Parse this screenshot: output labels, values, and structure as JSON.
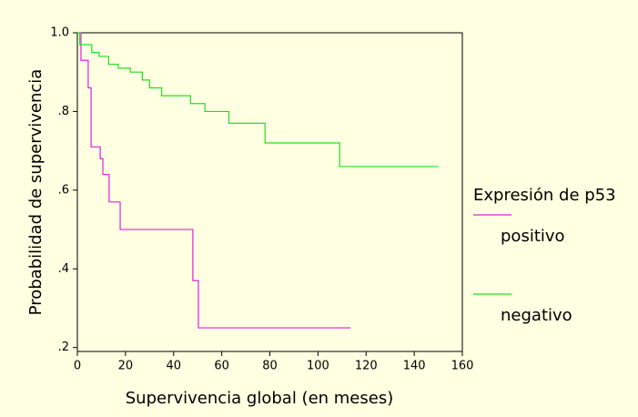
{
  "chart_data": {
    "type": "line",
    "xlabel": "Supervivencia global (en meses)",
    "ylabel": "Probabilidad de supervivencia",
    "legend_title": "Expresión de p53",
    "legend": "right",
    "xlim": [
      0,
      160
    ],
    "xticks": [
      0,
      20,
      40,
      60,
      80,
      100,
      120,
      140,
      160
    ],
    "ylim": [
      0.19,
      1.0
    ],
    "yticks": [
      {
        "value": 1.0,
        "label": "1.0"
      },
      {
        "value": 0.8,
        "label": ".8"
      },
      {
        "value": 0.6,
        "label": ".6"
      },
      {
        "value": 0.4,
        "label": ".4"
      },
      {
        "value": 0.2,
        "label": ".2"
      }
    ],
    "series": [
      {
        "name": "positivo",
        "color": "#e020e0",
        "x": [
          0,
          1.5,
          1.5,
          4.5,
          4.5,
          5.7,
          5.7,
          9.5,
          9.5,
          10.6,
          10.6,
          13.2,
          13.2,
          17.8,
          17.8,
          48,
          48,
          50.3,
          50.3,
          113.5
        ],
        "values": [
          1,
          1,
          0.93,
          0.93,
          0.86,
          0.86,
          0.71,
          0.71,
          0.68,
          0.68,
          0.64,
          0.64,
          0.57,
          0.57,
          0.5,
          0.5,
          0.37,
          0.37,
          0.25,
          0.25
        ]
      },
      {
        "name": "negativo",
        "color": "#20e020",
        "x": [
          0,
          1,
          1,
          6,
          6,
          9,
          9,
          13,
          13,
          17,
          17,
          22,
          22,
          27,
          27,
          30,
          30,
          35,
          35,
          47,
          47,
          53,
          53,
          63,
          63,
          78,
          78,
          109,
          109,
          150
        ],
        "values": [
          1,
          1,
          0.97,
          0.97,
          0.95,
          0.95,
          0.94,
          0.94,
          0.92,
          0.92,
          0.91,
          0.91,
          0.9,
          0.9,
          0.88,
          0.88,
          0.86,
          0.86,
          0.84,
          0.84,
          0.82,
          0.82,
          0.8,
          0.8,
          0.77,
          0.77,
          0.72,
          0.72,
          0.66,
          0.66
        ]
      }
    ]
  }
}
